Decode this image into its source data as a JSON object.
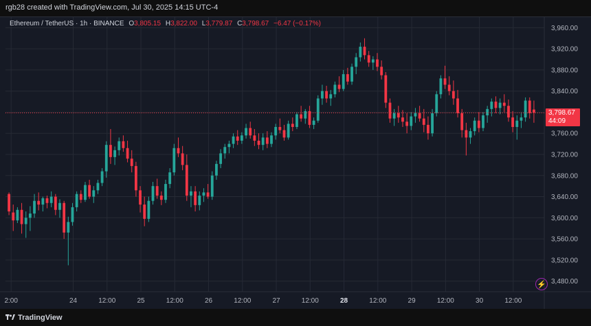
{
  "header": {
    "caption": "rgb28 created with TradingView.com, Jul 30, 2025 14:15 UTC-4"
  },
  "legend": {
    "symbol": "Ethereum / TetherUS · 1h · BINANCE",
    "o_label": "O",
    "o_value": "3,805.15",
    "h_label": "H",
    "h_value": "3,822.00",
    "l_label": "L",
    "l_value": "3,779.87",
    "c_label": "C",
    "c_value": "3,798.67",
    "change": "−6.47 (−0.17%)"
  },
  "price_label": {
    "price": "3,798.67",
    "countdown": "44:09"
  },
  "footer": {
    "brand": "TradingView"
  },
  "colors": {
    "up": "#26a69a",
    "down": "#f23645",
    "background": "#161a25",
    "grid": "#262a35"
  },
  "chart_data": {
    "type": "candlestick",
    "interval": "1h",
    "current_price": 3798.67,
    "ylim": [
      3460,
      3980
    ],
    "yticks": [
      3480,
      3520,
      3560,
      3600,
      3640,
      3680,
      3720,
      3760,
      3800,
      3840,
      3880,
      3920,
      3960
    ],
    "ytick_labels": [
      "3,480.00",
      "3,520.00",
      "3,560.00",
      "3,600.00",
      "3,640.00",
      "3,680.00",
      "3,720.00",
      "3,760.00",
      "3,800.00",
      "3,840.00",
      "3,880.00",
      "3,920.00",
      "3,960.00"
    ],
    "xtick_labels": [
      "2:00",
      "24",
      "12:00",
      "25",
      "12:00",
      "26",
      "12:00",
      "27",
      "12:00",
      "28",
      "12:00",
      "29",
      "12:00",
      "30",
      "12:00"
    ],
    "xtick_hours": [
      2,
      24,
      36,
      48,
      60,
      72,
      84,
      96,
      108,
      120,
      132,
      144,
      156,
      168,
      180
    ],
    "xtick_bold": [
      "28"
    ],
    "ohlc_approx": [
      [
        3645,
        3648,
        3605,
        3612
      ],
      [
        3610,
        3625,
        3575,
        3595
      ],
      [
        3595,
        3620,
        3590,
        3615
      ],
      [
        3615,
        3628,
        3570,
        3588
      ],
      [
        3588,
        3612,
        3562,
        3600
      ],
      [
        3600,
        3622,
        3575,
        3608
      ],
      [
        3608,
        3645,
        3600,
        3632
      ],
      [
        3632,
        3648,
        3614,
        3625
      ],
      [
        3625,
        3640,
        3612,
        3637
      ],
      [
        3637,
        3642,
        3618,
        3628
      ],
      [
        3628,
        3650,
        3620,
        3640
      ],
      [
        3640,
        3645,
        3605,
        3615
      ],
      [
        3615,
        3635,
        3600,
        3628
      ],
      [
        3628,
        3632,
        3560,
        3572
      ],
      [
        3572,
        3602,
        3510,
        3592
      ],
      [
        3592,
        3628,
        3585,
        3620
      ],
      [
        3620,
        3650,
        3612,
        3645
      ],
      [
        3645,
        3652,
        3628,
        3634
      ],
      [
        3634,
        3668,
        3630,
        3662
      ],
      [
        3662,
        3672,
        3636,
        3640
      ],
      [
        3640,
        3660,
        3628,
        3652
      ],
      [
        3652,
        3672,
        3645,
        3666
      ],
      [
        3666,
        3694,
        3660,
        3688
      ],
      [
        3688,
        3745,
        3676,
        3738
      ],
      [
        3738,
        3768,
        3702,
        3715
      ],
      [
        3715,
        3735,
        3700,
        3728
      ],
      [
        3728,
        3752,
        3718,
        3745
      ],
      [
        3745,
        3756,
        3725,
        3732
      ],
      [
        3732,
        3746,
        3705,
        3712
      ],
      [
        3712,
        3728,
        3686,
        3698
      ],
      [
        3698,
        3706,
        3640,
        3652
      ],
      [
        3652,
        3660,
        3610,
        3625
      ],
      [
        3625,
        3640,
        3584,
        3598
      ],
      [
        3598,
        3640,
        3592,
        3632
      ],
      [
        3632,
        3668,
        3625,
        3660
      ],
      [
        3660,
        3674,
        3636,
        3642
      ],
      [
        3642,
        3650,
        3624,
        3634
      ],
      [
        3634,
        3672,
        3628,
        3664
      ],
      [
        3664,
        3694,
        3656,
        3686
      ],
      [
        3686,
        3740,
        3680,
        3732
      ],
      [
        3732,
        3752,
        3715,
        3722
      ],
      [
        3722,
        3736,
        3690,
        3700
      ],
      [
        3700,
        3720,
        3632,
        3642
      ],
      [
        3642,
        3660,
        3620,
        3650
      ],
      [
        3650,
        3660,
        3612,
        3624
      ],
      [
        3624,
        3650,
        3614,
        3642
      ],
      [
        3642,
        3656,
        3630,
        3648
      ],
      [
        3648,
        3664,
        3636,
        3640
      ],
      [
        3640,
        3688,
        3634,
        3680
      ],
      [
        3680,
        3708,
        3672,
        3702
      ],
      [
        3702,
        3730,
        3694,
        3722
      ],
      [
        3722,
        3740,
        3712,
        3734
      ],
      [
        3734,
        3746,
        3722,
        3740
      ],
      [
        3740,
        3760,
        3732,
        3754
      ],
      [
        3754,
        3766,
        3738,
        3746
      ],
      [
        3746,
        3762,
        3740,
        3756
      ],
      [
        3756,
        3778,
        3750,
        3770
      ],
      [
        3770,
        3782,
        3750,
        3756
      ],
      [
        3756,
        3768,
        3736,
        3746
      ],
      [
        3746,
        3760,
        3730,
        3738
      ],
      [
        3738,
        3760,
        3728,
        3752
      ],
      [
        3752,
        3764,
        3732,
        3740
      ],
      [
        3740,
        3762,
        3734,
        3756
      ],
      [
        3756,
        3778,
        3748,
        3772
      ],
      [
        3772,
        3788,
        3760,
        3766
      ],
      [
        3766,
        3776,
        3746,
        3752
      ],
      [
        3752,
        3784,
        3748,
        3778
      ],
      [
        3778,
        3790,
        3764,
        3772
      ],
      [
        3772,
        3800,
        3768,
        3796
      ],
      [
        3796,
        3812,
        3782,
        3788
      ],
      [
        3788,
        3806,
        3778,
        3802
      ],
      [
        3802,
        3812,
        3770,
        3776
      ],
      [
        3776,
        3790,
        3768,
        3784
      ],
      [
        3784,
        3832,
        3780,
        3826
      ],
      [
        3826,
        3852,
        3814,
        3840
      ],
      [
        3840,
        3850,
        3818,
        3826
      ],
      [
        3826,
        3842,
        3812,
        3834
      ],
      [
        3834,
        3858,
        3828,
        3852
      ],
      [
        3852,
        3868,
        3838,
        3844
      ],
      [
        3844,
        3880,
        3840,
        3872
      ],
      [
        3872,
        3884,
        3852,
        3858
      ],
      [
        3858,
        3892,
        3852,
        3886
      ],
      [
        3886,
        3912,
        3872,
        3904
      ],
      [
        3904,
        3932,
        3896,
        3924
      ],
      [
        3924,
        3940,
        3900,
        3908
      ],
      [
        3908,
        3916,
        3886,
        3894
      ],
      [
        3894,
        3906,
        3880,
        3900
      ],
      [
        3900,
        3912,
        3878,
        3886
      ],
      [
        3886,
        3898,
        3862,
        3870
      ],
      [
        3870,
        3876,
        3808,
        3818
      ],
      [
        3818,
        3826,
        3780,
        3788
      ],
      [
        3788,
        3806,
        3774,
        3798
      ],
      [
        3798,
        3812,
        3780,
        3790
      ],
      [
        3790,
        3804,
        3772,
        3782
      ],
      [
        3782,
        3798,
        3760,
        3774
      ],
      [
        3774,
        3800,
        3766,
        3792
      ],
      [
        3792,
        3808,
        3780,
        3798
      ],
      [
        3798,
        3812,
        3782,
        3788
      ],
      [
        3788,
        3806,
        3762,
        3776
      ],
      [
        3776,
        3792,
        3748,
        3760
      ],
      [
        3760,
        3806,
        3754,
        3798
      ],
      [
        3798,
        3840,
        3792,
        3834
      ],
      [
        3834,
        3870,
        3826,
        3864
      ],
      [
        3864,
        3888,
        3844,
        3852
      ],
      [
        3852,
        3868,
        3832,
        3840
      ],
      [
        3840,
        3860,
        3814,
        3826
      ],
      [
        3826,
        3842,
        3790,
        3798
      ],
      [
        3798,
        3806,
        3752,
        3766
      ],
      [
        3766,
        3780,
        3718,
        3752
      ],
      [
        3752,
        3770,
        3740,
        3764
      ],
      [
        3764,
        3790,
        3756,
        3784
      ],
      [
        3784,
        3800,
        3762,
        3770
      ],
      [
        3770,
        3800,
        3764,
        3794
      ],
      [
        3794,
        3812,
        3780,
        3806
      ],
      [
        3806,
        3826,
        3792,
        3820
      ],
      [
        3820,
        3830,
        3798,
        3808
      ],
      [
        3808,
        3826,
        3796,
        3818
      ],
      [
        3818,
        3834,
        3800,
        3812
      ],
      [
        3812,
        3824,
        3782,
        3790
      ],
      [
        3790,
        3802,
        3762,
        3772
      ],
      [
        3772,
        3794,
        3748,
        3784
      ],
      [
        3784,
        3800,
        3770,
        3790
      ],
      [
        3790,
        3828,
        3782,
        3822
      ],
      [
        3822,
        3828,
        3788,
        3798
      ],
      [
        3805,
        3822,
        3780,
        3799
      ]
    ]
  }
}
